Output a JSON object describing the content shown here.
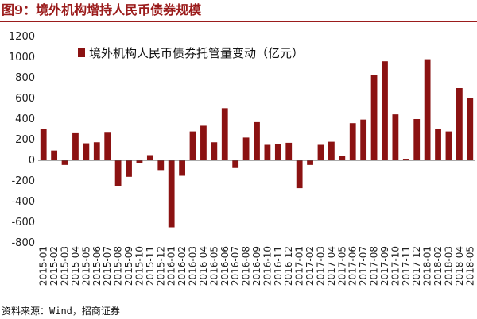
{
  "figure": {
    "title": "图9：境外机构增持人民币债券规模",
    "source": "资料来源：Wind，招商证券"
  },
  "colors": {
    "bar": "#8b1212",
    "title": "#9b1c1c",
    "axis": "#555555"
  },
  "chart_data": {
    "type": "bar",
    "title": "",
    "xlabel": "",
    "ylabel": "",
    "ylim": [
      -800,
      1200
    ],
    "yticks": [
      1200,
      1000,
      800,
      600,
      400,
      200,
      0,
      -200,
      -400,
      -600,
      -800
    ],
    "grid": false,
    "legend_position": "top-left",
    "categories": [
      "2015-01",
      "2015-02",
      "2015-03",
      "2015-04",
      "2015-05",
      "2015-06",
      "2015-07",
      "2015-08",
      "2015-09",
      "2015-10",
      "2015-11",
      "2015-12",
      "2016-01",
      "2016-02",
      "2016-03",
      "2016-04",
      "2016-05",
      "2016-06",
      "2016-07",
      "2016-08",
      "2016-09",
      "2016-10",
      "2016-11",
      "2016-12",
      "2017-01",
      "2017-02",
      "2017-03",
      "2017-04",
      "2017-05",
      "2017-06",
      "2017-07",
      "2017-08",
      "2017-09",
      "2017-10",
      "2017-11",
      "2017-12",
      "2018-01",
      "2018-02",
      "2018-03",
      "2018-04",
      "2018-05"
    ],
    "series": [
      {
        "name": "境外机构人民币债券托管量变动（亿元）",
        "values": [
          300,
          95,
          -45,
          270,
          165,
          175,
          275,
          -250,
          -160,
          -30,
          50,
          -95,
          -650,
          -150,
          280,
          335,
          175,
          505,
          -75,
          220,
          370,
          150,
          155,
          170,
          -270,
          -45,
          150,
          180,
          40,
          360,
          395,
          825,
          960,
          445,
          15,
          400,
          980,
          305,
          280,
          700,
          605
        ]
      }
    ]
  }
}
